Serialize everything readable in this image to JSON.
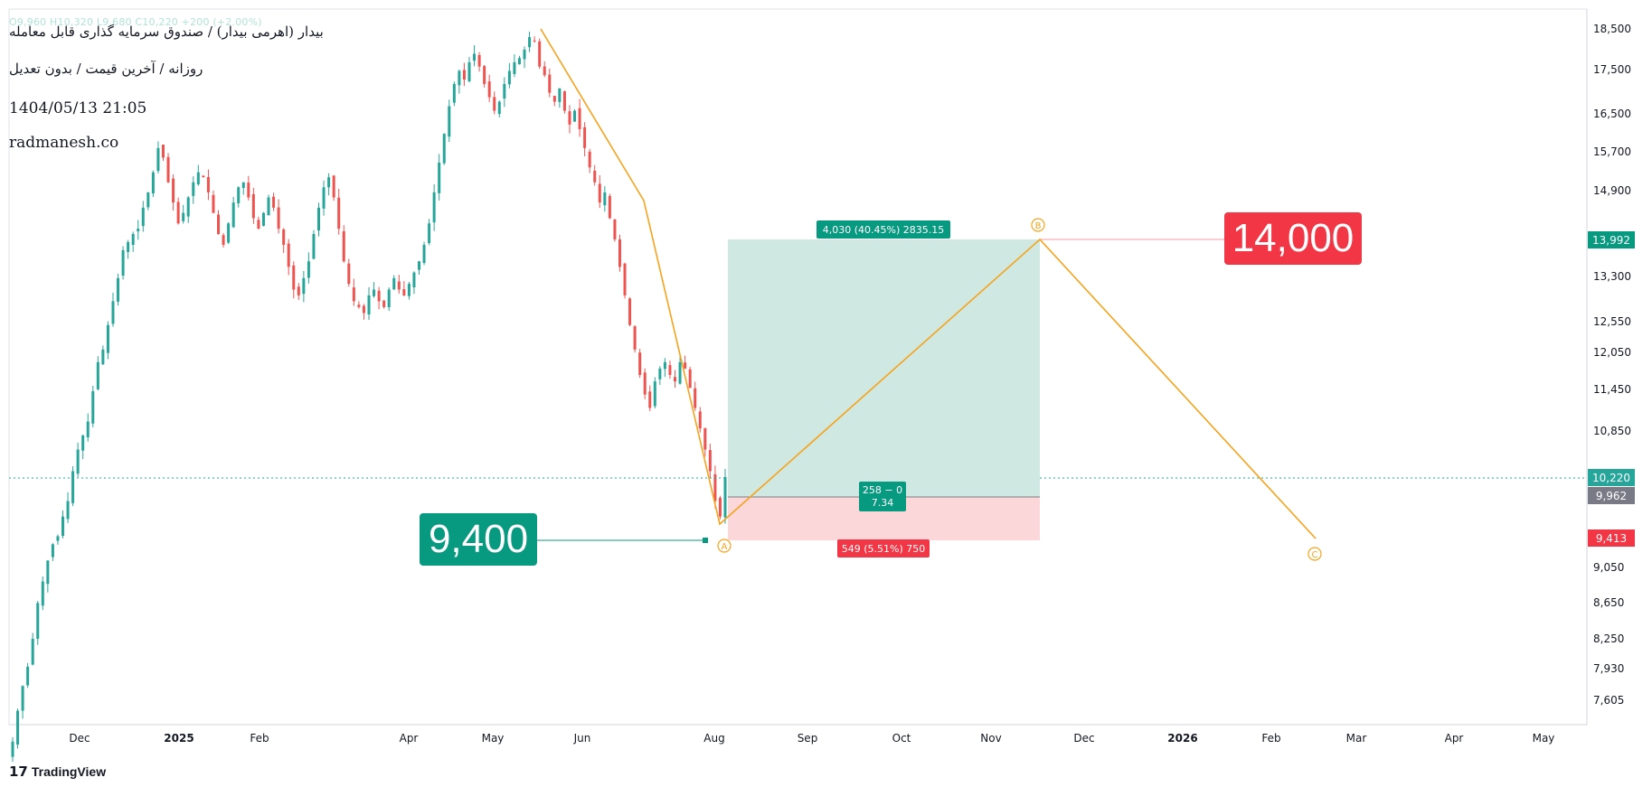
{
  "header": {
    "title": "بیدار (اهرمی بیدار) / صندوق سرمایه گذاری قابل معامله",
    "subtitle": "روزانه / آخرین قیمت / بدون تعدیل",
    "datetime": "1404/05/13 21:05",
    "website": "radmanesh.co",
    "ohlc_faint": "O9,960 H10,320 L9,680 C10,220 +200 (+2.00%)"
  },
  "branding": {
    "logo_text": "TradingView",
    "logo_icon": "tradingview-logo-icon"
  },
  "annotations": {
    "target_label": "14,000",
    "entry_label": "9,400",
    "profit_box_text": "4,030 (40.45%) 2835.15",
    "ratio_line1": "258 − 0",
    "ratio_line2": "7.34",
    "loss_box_text": "549 (5.51%) 750",
    "wave_points": [
      "A",
      "B",
      "C"
    ]
  },
  "price_badges": {
    "current": "10,220",
    "target": "13,992",
    "mid": "9,962",
    "stop": "9,413"
  },
  "colors": {
    "up": "#26a69a",
    "down": "#ef5350",
    "profit_zone": "#cfe9e2",
    "loss_zone": "#fbd7d9",
    "wave_line": "#f7a21b",
    "target_red": "#f23645",
    "entry_green": "#089981",
    "mid_badge": "#787b86"
  },
  "chart_data": {
    "type": "candlestick",
    "x_axis_labels": [
      "Dec",
      "2025",
      "Feb",
      "Apr",
      "May",
      "Jun",
      "Aug",
      "Sep",
      "Oct",
      "Nov",
      "Dec",
      "2026",
      "Feb",
      "Mar",
      "Apr",
      "May"
    ],
    "y_axis_labels": [
      "18,500",
      "17,500",
      "16,500",
      "15,700",
      "14,900",
      "13,300",
      "12,550",
      "12,050",
      "11,450",
      "10,850",
      "9,050",
      "8,650",
      "8,250",
      "7,930",
      "7,605"
    ],
    "y_scale": "log",
    "ylim": [
      7400,
      18700
    ],
    "closes": [
      7200,
      7500,
      7750,
      7950,
      8250,
      8650,
      8900,
      9150,
      9350,
      9450,
      9700,
      9900,
      10300,
      10600,
      10800,
      11000,
      11450,
      11900,
      12100,
      12500,
      12900,
      13300,
      13800,
      13950,
      14100,
      14200,
      14600,
      14900,
      15300,
      15800,
      15600,
      15100,
      14700,
      14300,
      14500,
      14800,
      15100,
      15300,
      15200,
      14900,
      14500,
      14100,
      13900,
      14300,
      14700,
      15000,
      15100,
      14800,
      14400,
      14200,
      14500,
      14800,
      14600,
      14200,
      13900,
      13500,
      13100,
      13000,
      13300,
      13600,
      14100,
      14600,
      15000,
      15200,
      14800,
      14200,
      13600,
      13200,
      12900,
      12800,
      12700,
      13000,
      13100,
      12900,
      12800,
      13100,
      13300,
      13100,
      13000,
      13200,
      13400,
      13600,
      13900,
      14300,
      14900,
      15500,
      16100,
      16700,
      17200,
      17500,
      17300,
      17700,
      17900,
      17600,
      17200,
      16900,
      16600,
      16800,
      17200,
      17500,
      17700,
      17800,
      18000,
      18300,
      18200,
      17600,
      17400,
      17000,
      16800,
      17100,
      16600,
      16300,
      16600,
      16200,
      15800,
      15400,
      15100,
      14700,
      14900,
      14400,
      14000,
      13500,
      13000,
      12500,
      12100,
      11700,
      11400,
      11200,
      11600,
      11800,
      11900,
      11700,
      11600,
      11900,
      11800,
      11500,
      11200,
      10900,
      10600,
      10300,
      9900,
      9700,
      10220
    ]
  }
}
